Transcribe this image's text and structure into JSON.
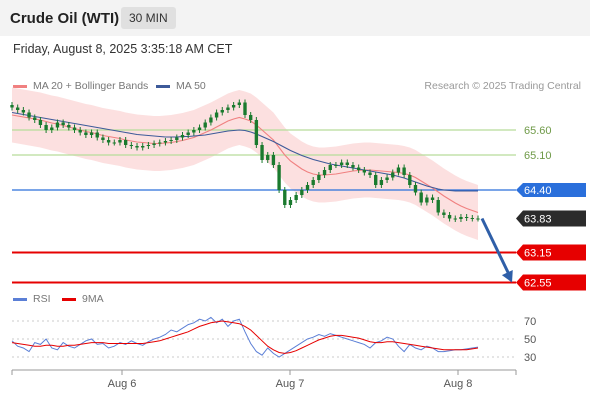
{
  "header": {
    "title": "Crude Oil (WTI)",
    "timeframe": "30 MIN",
    "timestamp": "Friday, August 8, 2025 3:35:18 AM CET"
  },
  "legend": {
    "ma20_label": "MA 20 + Bollinger Bands",
    "ma50_label": "MA 50",
    "credit": "Research © 2025 Trading Central",
    "rsi_label": "RSI",
    "rsi_ma_label": "9MA"
  },
  "colors": {
    "ma20": "#f08080",
    "ma50": "#3d5a99",
    "bollinger_fill": "#fbd5d5",
    "candle": "#1a7a2e",
    "green_level": "#b6dc9a",
    "blue_level": "#2a6fdb",
    "red_level": "#e60000",
    "last_price_box": "#2b2b2b",
    "arrow": "#2f5fa8",
    "rsi": "#5b7fd6",
    "rsi_ma": "#e60000"
  },
  "chart_data": {
    "type": "candlestick",
    "x_ticks": [
      "Aug 6",
      "Aug 7",
      "Aug 8"
    ],
    "price_ylim": [
      62.4,
      66.2
    ],
    "levels": [
      {
        "value": 65.6,
        "label": "65.60",
        "style": "green"
      },
      {
        "value": 65.1,
        "label": "65.10",
        "style": "green"
      },
      {
        "value": 64.4,
        "label": "64.40",
        "style": "blue"
      },
      {
        "value": 63.83,
        "label": "63.83",
        "style": "last"
      },
      {
        "value": 63.15,
        "label": "63.15",
        "style": "red"
      },
      {
        "value": 62.55,
        "label": "62.55",
        "style": "red"
      }
    ],
    "close": [
      66.05,
      66.0,
      65.95,
      65.85,
      65.8,
      65.7,
      65.6,
      65.65,
      65.75,
      65.7,
      65.65,
      65.6,
      65.55,
      65.5,
      65.55,
      65.45,
      65.4,
      65.35,
      65.35,
      65.4,
      65.3,
      65.28,
      65.25,
      65.28,
      65.3,
      65.33,
      65.35,
      65.38,
      65.4,
      65.45,
      65.5,
      65.55,
      65.6,
      65.65,
      65.75,
      65.85,
      65.95,
      66.0,
      66.05,
      66.1,
      66.15,
      65.9,
      65.8,
      65.3,
      65.0,
      65.1,
      64.9,
      64.4,
      64.1,
      64.2,
      64.3,
      64.4,
      64.5,
      64.6,
      64.7,
      64.8,
      64.9,
      64.9,
      64.95,
      64.9,
      64.85,
      64.8,
      64.75,
      64.7,
      64.5,
      64.6,
      64.65,
      64.75,
      64.85,
      64.7,
      64.5,
      64.35,
      64.15,
      64.25,
      64.2,
      63.95,
      63.9,
      63.83,
      63.82,
      63.86,
      63.84,
      63.83,
      63.83
    ],
    "ma20": [
      65.9,
      65.88,
      65.86,
      65.84,
      65.82,
      65.8,
      65.77,
      65.74,
      65.72,
      65.69,
      65.66,
      65.63,
      65.6,
      65.57,
      65.55,
      65.52,
      65.49,
      65.47,
      65.45,
      65.43,
      65.4,
      65.38,
      65.36,
      65.35,
      65.34,
      65.33,
      65.33,
      65.34,
      65.35,
      65.37,
      65.39,
      65.42,
      65.45,
      65.5,
      65.55,
      65.6,
      65.66,
      65.72,
      65.78,
      65.82,
      65.85,
      65.82,
      65.78,
      65.7,
      65.6,
      65.5,
      65.4,
      65.25,
      65.1,
      64.98,
      64.9,
      64.82,
      64.76,
      64.72,
      64.7,
      64.7,
      64.71,
      64.72,
      64.74,
      64.76,
      64.78,
      64.79,
      64.8,
      64.8,
      64.79,
      64.78,
      64.77,
      64.76,
      64.75,
      64.73,
      64.7,
      64.65,
      64.58,
      64.51,
      64.44,
      64.36,
      64.28,
      64.21,
      64.14,
      64.08,
      64.03,
      63.99,
      63.95
    ],
    "ma50": [
      65.95,
      65.93,
      65.91,
      65.89,
      65.87,
      65.85,
      65.83,
      65.81,
      65.79,
      65.77,
      65.75,
      65.73,
      65.71,
      65.69,
      65.67,
      65.65,
      65.63,
      65.61,
      65.59,
      65.57,
      65.55,
      65.53,
      65.51,
      65.5,
      65.49,
      65.48,
      65.47,
      65.46,
      65.46,
      65.46,
      65.47,
      65.47,
      65.48,
      65.49,
      65.5,
      65.52,
      65.54,
      65.56,
      65.58,
      65.59,
      65.6,
      65.59,
      65.56,
      65.52,
      65.47,
      65.42,
      65.37,
      65.31,
      65.25,
      65.19,
      65.14,
      65.09,
      65.05,
      65.01,
      64.98,
      64.95,
      64.92,
      64.9,
      64.88,
      64.86,
      64.84,
      64.82,
      64.8,
      64.78,
      64.76,
      64.74,
      64.72,
      64.7,
      64.67,
      64.64,
      64.6,
      64.56,
      64.52,
      64.48,
      64.45,
      64.42,
      64.4,
      64.39,
      64.38,
      64.38,
      64.38,
      64.38,
      64.38
    ],
    "bb_width": 0.55,
    "projection": {
      "from": 63.83,
      "to": 62.55
    },
    "rsi_ticks": [
      70,
      50,
      30
    ],
    "rsi_ylim": [
      20,
      80
    ],
    "rsi": [
      48,
      42,
      40,
      36,
      46,
      44,
      50,
      40,
      38,
      46,
      42,
      40,
      44,
      48,
      50,
      44,
      45,
      40,
      42,
      46,
      44,
      48,
      45,
      43,
      47,
      50,
      52,
      55,
      60,
      58,
      62,
      66,
      68,
      72,
      70,
      74,
      68,
      72,
      64,
      70,
      72,
      58,
      45,
      36,
      32,
      40,
      34,
      30,
      34,
      38,
      42,
      46,
      50,
      52,
      55,
      53,
      56,
      54,
      52,
      50,
      48,
      46,
      44,
      40,
      46,
      48,
      52,
      50,
      42,
      36,
      44,
      40,
      38,
      42,
      40,
      36,
      36,
      37,
      38,
      38,
      39,
      40,
      41
    ],
    "rsi_ma": [
      46,
      45,
      44,
      43,
      42,
      42,
      43,
      43,
      42,
      42,
      43,
      43,
      44,
      45,
      46,
      46,
      46,
      45,
      45,
      45,
      45,
      45,
      45,
      45,
      46,
      47,
      48,
      50,
      52,
      54,
      56,
      58,
      61,
      64,
      66,
      68,
      69,
      70,
      69,
      68,
      67,
      64,
      60,
      54,
      48,
      42,
      38,
      35,
      34,
      35,
      37,
      40,
      43,
      46,
      49,
      51,
      53,
      54,
      54,
      53,
      52,
      51,
      49,
      47,
      46,
      46,
      47,
      47,
      46,
      45,
      44,
      43,
      42,
      41,
      40,
      39,
      38,
      38,
      38,
      38,
      38,
      39,
      40
    ]
  }
}
